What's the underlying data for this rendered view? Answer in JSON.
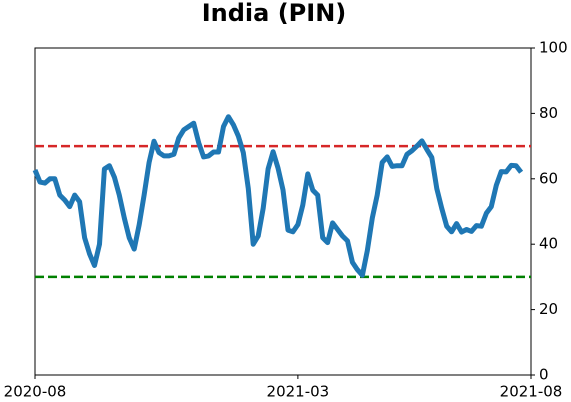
{
  "chart_data": {
    "type": "line",
    "title": "India (PIN)",
    "categories": [
      "2020-08",
      null,
      null,
      null,
      null,
      null,
      null,
      null,
      null,
      null,
      null,
      null,
      null,
      null,
      null,
      null,
      null,
      null,
      null,
      null,
      null,
      null,
      null,
      null,
      null,
      null,
      null,
      null,
      null,
      null,
      null,
      null,
      null,
      null,
      null,
      null,
      null,
      null,
      null,
      null,
      null,
      null,
      null,
      null,
      null,
      null,
      null,
      null,
      null,
      null,
      null,
      null,
      null,
      "2021-03",
      null,
      null,
      null,
      null,
      null,
      null,
      null,
      null,
      null,
      null,
      null,
      null,
      null,
      null,
      null,
      null,
      null,
      null,
      null,
      null,
      null,
      null,
      null,
      null,
      null,
      null,
      null,
      null,
      null,
      null,
      null,
      null,
      null,
      null,
      null,
      null,
      null,
      null,
      null,
      null,
      null,
      null,
      null,
      null,
      null,
      null,
      "2021-08"
    ],
    "series": [
      {
        "color": "#1f77b4",
        "values": [
          62.7,
          59,
          58.7,
          60,
          60,
          55,
          53.5,
          51.5,
          55,
          53,
          42,
          37,
          33.5,
          40,
          63,
          64,
          60.5,
          55,
          48,
          42,
          38.5,
          46,
          55,
          65,
          71.5,
          68,
          67,
          67,
          67.5,
          72.5,
          75,
          76,
          77,
          71,
          66.7,
          67,
          68.2,
          68.2,
          76,
          79,
          76.5,
          73,
          68,
          57,
          40,
          42.5,
          51,
          63,
          68.3,
          63.3,
          56.6,
          44.3,
          43.8,
          46,
          52,
          61.5,
          56.5,
          55,
          42,
          40.5,
          46.5,
          44.5,
          42.5,
          41,
          34.5,
          32.2,
          30.5,
          38,
          48,
          55,
          65,
          66.7,
          63.8,
          64,
          64,
          67.5,
          68.6,
          70,
          71.6,
          69,
          66.5,
          57,
          51,
          45.5,
          43.8,
          46.3,
          43.7,
          44.5,
          43.9,
          45.7,
          45.5,
          49.5,
          51.5,
          58,
          62.2,
          62.1,
          64.1,
          64,
          62,
          null,
          null
        ]
      }
    ],
    "hlines": [
      {
        "value": 70,
        "color": "#d62728"
      },
      {
        "value": 30,
        "color": "#008000"
      }
    ],
    "ylim": [
      0,
      100
    ],
    "yticks": [
      0,
      20,
      40,
      60,
      80,
      100
    ],
    "yaxis_side": "right",
    "grid": false
  }
}
